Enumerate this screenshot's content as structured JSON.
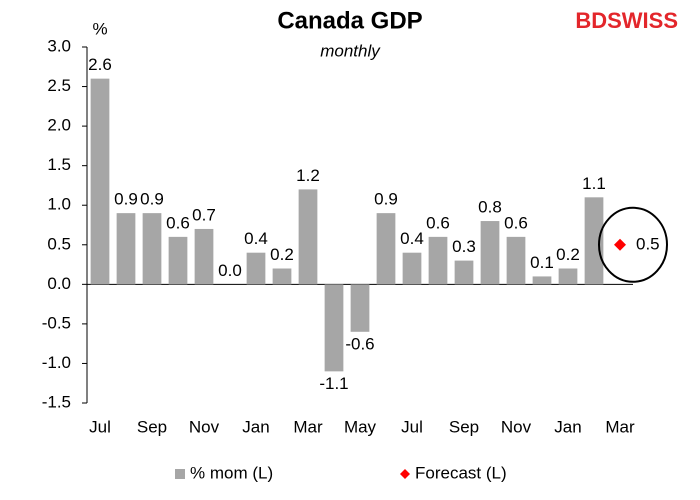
{
  "chart_data": {
    "type": "bar",
    "title": "Canada GDP",
    "subtitle": "monthly",
    "y_label": "%",
    "logo": "BDSWISS",
    "categories": [
      "Jul",
      null,
      "Sep",
      null,
      "Nov",
      null,
      "Jan",
      null,
      "Mar",
      null,
      "May",
      null,
      "Jul",
      null,
      "Sep",
      null,
      "Nov",
      null,
      "Jan",
      null,
      "Mar"
    ],
    "series": [
      {
        "name": "% mom (L)",
        "color": "#a6a6a6",
        "values": [
          2.6,
          0.9,
          0.9,
          0.6,
          0.7,
          0.0,
          0.4,
          0.2,
          1.2,
          -1.1,
          -0.6,
          0.9,
          0.4,
          0.6,
          0.3,
          0.8,
          0.6,
          0.1,
          0.2,
          1.1,
          null
        ],
        "value_labels": [
          "2.6",
          "0.9",
          "0.9",
          "0.6",
          "0.7",
          "0.0",
          "0.4",
          "0.2",
          "1.2",
          "-1.1",
          "-0.6",
          "0.9",
          "0.4",
          "0.6",
          "0.3",
          "0.8",
          "0.6",
          "0.1",
          "0.2",
          "1.1",
          null
        ]
      },
      {
        "name": "Forecast (L)",
        "color": "#ff0000",
        "marker": "diamond",
        "values": [
          null,
          null,
          null,
          null,
          null,
          null,
          null,
          null,
          null,
          null,
          null,
          null,
          null,
          null,
          null,
          null,
          null,
          null,
          null,
          null,
          0.5
        ]
      }
    ],
    "ylim": [
      -1.5,
      3.0
    ],
    "yticks": [
      -1.5,
      {
        "value": -1.0,
        "label": "-1.0"
      },
      -0.5,
      {
        "value": 0.0,
        "label": "0.0"
      },
      0.5,
      {
        "value": 1.0,
        "label": "1.0"
      },
      1.5,
      {
        "value": 2.0,
        "label": "2.0"
      },
      2.5,
      {
        "value": 3.0,
        "label": "3.0"
      }
    ],
    "grid": false,
    "legend": "bottom"
  }
}
